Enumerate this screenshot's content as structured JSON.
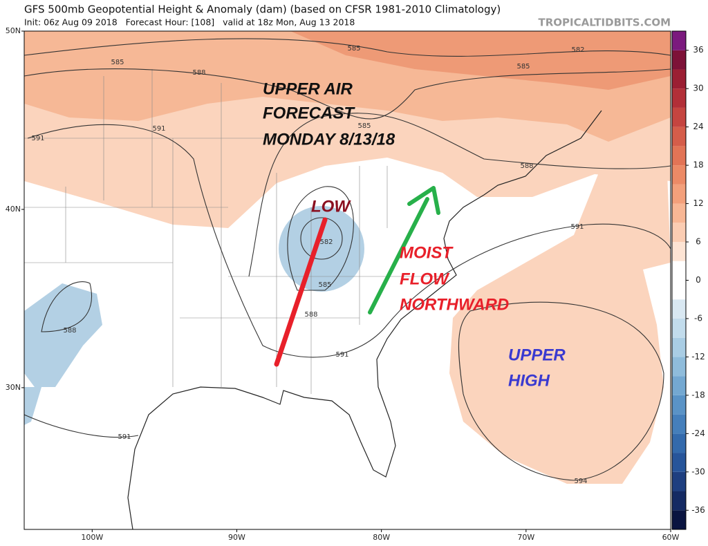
{
  "header": {
    "title": "GFS 500mb Geopotential Height & Anomaly (dam) (based on CFSR 1981-2010 Climatology)",
    "subtitle": "Init: 06z Aug 09 2018   Forecast Hour: [108]   valid at 18z Mon, Aug 13 2018",
    "source": "TROPICALTIDBITS.COM"
  },
  "map": {
    "xlim": [
      -104.7,
      -60
    ],
    "ylim": [
      22.05,
      50
    ],
    "lon_ticks": [
      {
        "value": -100,
        "label": "100W"
      },
      {
        "value": -90,
        "label": "90W"
      },
      {
        "value": -80,
        "label": "80W"
      },
      {
        "value": -70,
        "label": "70W"
      },
      {
        "value": -60,
        "label": "60W"
      }
    ],
    "lat_ticks": [
      {
        "value": 50,
        "label": "50N"
      },
      {
        "value": 40,
        "label": "40N"
      },
      {
        "value": 30,
        "label": "30N"
      }
    ],
    "contour_labels": [
      585,
      585,
      585,
      585,
      585,
      582,
      582,
      588,
      588,
      588,
      588,
      591,
      591,
      591,
      591,
      591,
      594
    ],
    "annotations": [
      {
        "text": "UPPER AIR",
        "color": "#111111"
      },
      {
        "text": "FORECAST",
        "color": "#111111"
      },
      {
        "text": "MONDAY 8/13/18",
        "color": "#111111"
      },
      {
        "text": "LOW",
        "color": "#8b1020"
      },
      {
        "text": "MOIST",
        "color": "#e8202a"
      },
      {
        "text": "FLOW",
        "color": "#e8202a"
      },
      {
        "text": "NORTHWARD",
        "color": "#e8202a"
      },
      {
        "text": "UPPER",
        "color": "#3a3ad0"
      },
      {
        "text": "HIGH",
        "color": "#3a3ad0"
      }
    ]
  },
  "colorbar": {
    "clim": [
      -39,
      39
    ],
    "ticks": [
      -36,
      -30,
      -24,
      -18,
      -12,
      -6,
      0,
      6,
      12,
      18,
      24,
      30,
      36
    ],
    "colors": [
      "#0a1440",
      "#142a63",
      "#1e3f80",
      "#27559a",
      "#336aac",
      "#457fbb",
      "#5a93c6",
      "#74a8d1",
      "#8fbcdb",
      "#a9cde4",
      "#c2dcec",
      "#d9e8f2",
      "#ffffff",
      "#ffffff",
      "#fde4d4",
      "#fbcdb3",
      "#f8b795",
      "#f3a07b",
      "#ec8a66",
      "#e27456",
      "#d55d4a",
      "#c54540",
      "#b22f38",
      "#9b1f33",
      "#7d1238",
      "#7b1a7e"
    ]
  }
}
